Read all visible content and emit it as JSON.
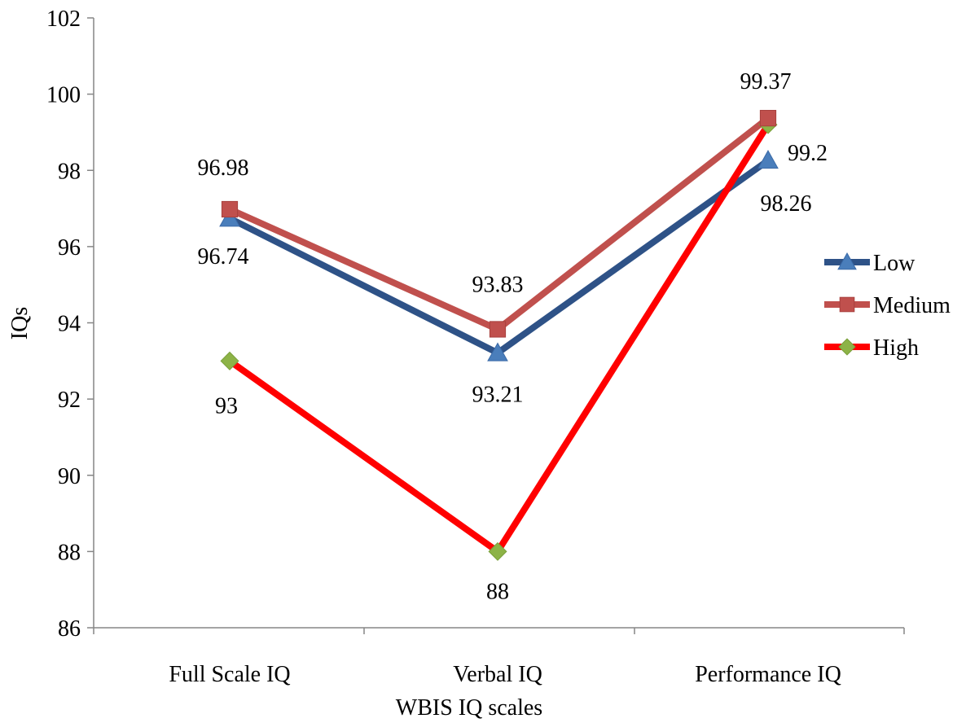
{
  "chart_data": {
    "type": "line",
    "title": "",
    "xlabel": "WBIS IQ scales",
    "ylabel": "IQs",
    "categories": [
      "Full Scale IQ",
      "Verbal IQ",
      "Performance IQ"
    ],
    "ylim": [
      86,
      102
    ],
    "yticks": [
      "86",
      "88",
      "90",
      "92",
      "94",
      "96",
      "98",
      "100",
      "102"
    ],
    "grid": false,
    "legend_position": "right",
    "series": [
      {
        "name": "Low",
        "values": [
          96.74,
          93.21,
          98.26
        ],
        "labels": [
          "96.74",
          "93.21",
          "98.26"
        ],
        "color": "#2e5287",
        "marker": "triangle",
        "marker_color": "#4a7ebb"
      },
      {
        "name": "Medium",
        "values": [
          96.98,
          93.83,
          99.37
        ],
        "labels": [
          "96.98",
          "93.83",
          "99.37"
        ],
        "color": "#c0504d",
        "marker": "square",
        "marker_color": "#c0504d"
      },
      {
        "name": "High",
        "values": [
          93,
          88,
          99.2
        ],
        "labels": [
          "93",
          "88",
          "99.2"
        ],
        "color": "#ff0000",
        "marker": "diamond",
        "marker_color": "#8db347"
      }
    ]
  }
}
